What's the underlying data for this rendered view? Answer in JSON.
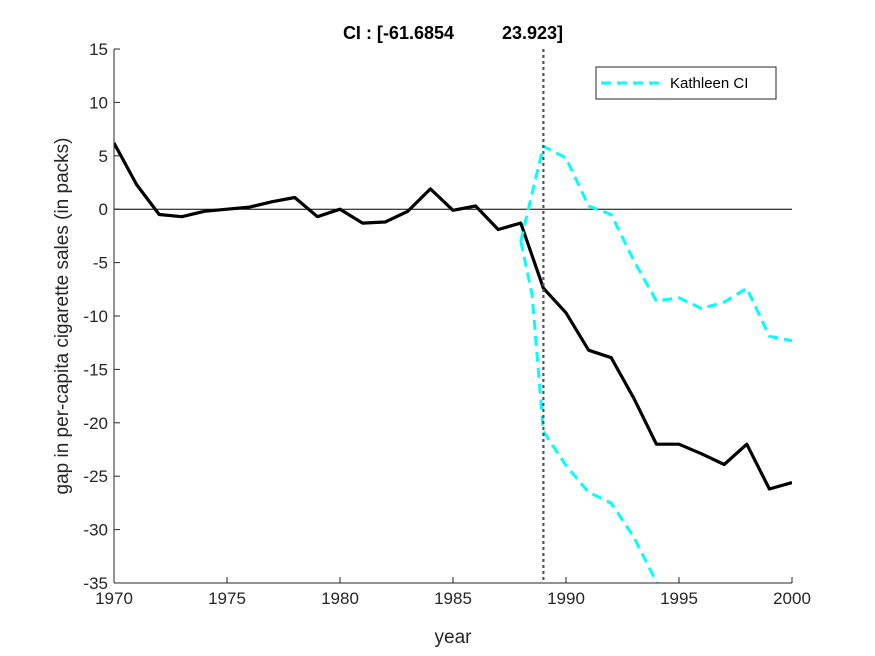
{
  "chart_data": {
    "type": "line",
    "title_prefix": "CI : [",
    "ci_low": "-61.6854",
    "ci_high": "23.923]",
    "xlabel": "year",
    "ylabel": "gap in per-capita cigarette sales (in packs)",
    "xlim": [
      1970,
      2000
    ],
    "ylim": [
      -35,
      15
    ],
    "xticks": [
      "1970",
      "1975",
      "1980",
      "1985",
      "1990",
      "1995",
      "2000"
    ],
    "yticks": [
      "15",
      "10",
      "5",
      "0",
      "-5",
      "-10",
      "-15",
      "-20",
      "-25",
      "-30",
      "-35"
    ],
    "reference_hline": 0,
    "reference_vline": 1989,
    "series": [
      {
        "name": "gap",
        "color": "#000000",
        "style": "solid",
        "in_legend": false,
        "x": [
          1970,
          1971,
          1972,
          1973,
          1974,
          1975,
          1976,
          1977,
          1978,
          1979,
          1980,
          1981,
          1982,
          1983,
          1984,
          1985,
          1986,
          1987,
          1988,
          1989,
          1990,
          1991,
          1992,
          1993,
          1994,
          1995,
          1996,
          1997,
          1998,
          1999,
          2000
        ],
        "y": [
          6.2,
          2.3,
          -0.5,
          -0.7,
          -0.2,
          0.0,
          0.2,
          0.7,
          1.1,
          -0.7,
          0.0,
          -1.3,
          -1.2,
          -0.2,
          1.9,
          -0.1,
          0.3,
          -1.9,
          -1.3,
          -7.4,
          -9.7,
          -13.2,
          -13.9,
          -17.7,
          -22.0,
          -22.0,
          -22.9,
          -23.9,
          -22.0,
          -26.2,
          -25.6
        ]
      },
      {
        "name": "Kathleen CI",
        "color": "#00ffff",
        "style": "dashed",
        "in_legend": true,
        "x": [
          1988,
          1988.5,
          1989,
          1990,
          1991,
          1992,
          1993,
          1994,
          1995,
          1996,
          1997,
          1998,
          1999,
          2000
        ],
        "y": [
          -3.0,
          1.5,
          5.9,
          4.8,
          0.3,
          -0.5,
          -4.8,
          -8.6,
          -8.3,
          -9.3,
          -8.7,
          -7.4,
          -11.9,
          -12.3
        ]
      },
      {
        "name": "Kathleen CI lower",
        "color": "#00ffff",
        "style": "dashed",
        "in_legend": false,
        "x": [
          1988,
          1988.5,
          1989,
          1990,
          1991,
          1992,
          1993,
          1994,
          1994.3
        ],
        "y": [
          -3.0,
          -8.0,
          -20.8,
          -24.0,
          -26.5,
          -27.5,
          -30.7,
          -34.9,
          -36.0
        ]
      }
    ],
    "legend": {
      "position": "top-right",
      "entries": [
        "Kathleen CI"
      ]
    }
  }
}
